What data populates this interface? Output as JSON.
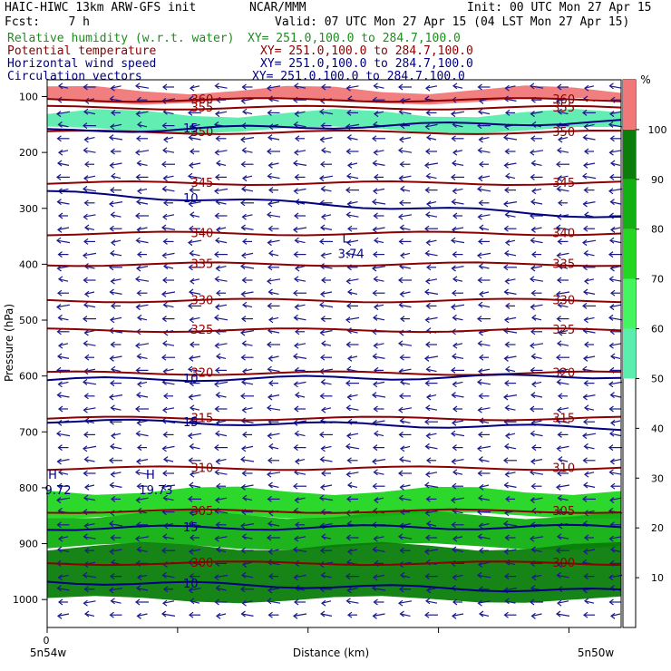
{
  "header": {
    "line1_left": "HAIC-HIWC 13km ARW-GFS init",
    "line1_mid": "NCAR/MMM",
    "line1_right": "Init: 00 UTC Mon 27 Apr 15",
    "line2_left": "Fcst:    7 h",
    "line2_right": "Valid: 07 UTC Mon 27 Apr 15 (04 LST Mon 27 Apr 15)",
    "fields": [
      {
        "name": "Relative humidity (w.r.t. water)",
        "xy": "XY= 251.0,100.0 to 284.7,100.0",
        "color": "#1e8c1e"
      },
      {
        "name": "Potential temperature",
        "xy": "XY= 251.0,100.0 to 284.7,100.0",
        "color": "#8b0000"
      },
      {
        "name": "Horizontal wind speed",
        "xy": "XY= 251.0,100.0 to 284.7,100.0",
        "color": "#000080"
      },
      {
        "name": "Circulation vectors",
        "xy": "XY= 251.0,100.0 to 284.7,100.0",
        "color": "#000080"
      }
    ]
  },
  "chart_data": {
    "type": "heatmap",
    "xlabel": "Distance (km)",
    "ylabel": "Pressure (hPa)",
    "x_start_label": "5n54w",
    "x_end_label": "5n50w",
    "x_zero_label": "0",
    "yticks": [
      100,
      200,
      300,
      400,
      500,
      600,
      700,
      800,
      900,
      1000
    ],
    "ylim": [
      1050,
      70
    ],
    "colorbar": {
      "unit": "%",
      "ticks": [
        10,
        20,
        30,
        40,
        50,
        60,
        70,
        80,
        90,
        100
      ],
      "bands": [
        {
          "from": 50,
          "to": 60,
          "color": "#5aedae"
        },
        {
          "from": 60,
          "to": 70,
          "color": "#44f560"
        },
        {
          "from": 70,
          "to": 80,
          "color": "#22d622"
        },
        {
          "from": 80,
          "to": 90,
          "color": "#12b012"
        },
        {
          "from": 90,
          "to": 100,
          "color": "#0a7d0a"
        },
        {
          "from": 100,
          "to": 110,
          "color": "#f07878"
        }
      ]
    },
    "rh_fields": [
      {
        "band": 2,
        "p_top": 805,
        "p_bot": 850
      },
      {
        "band": 3,
        "p_top": 848,
        "p_bot": 905
      },
      {
        "band": 4,
        "p_top": 905,
        "p_bot": 1000
      },
      {
        "band": 0,
        "p_top": 130,
        "p_bot": 160
      },
      {
        "band": 5,
        "p_top": 88,
        "p_bot": 108
      }
    ],
    "theta_contours": [
      {
        "label": "300",
        "p": 935
      },
      {
        "label": "305",
        "p": 842
      },
      {
        "label": "310",
        "p": 765
      },
      {
        "label": "315",
        "p": 676
      },
      {
        "label": "320",
        "p": 595
      },
      {
        "label": "325",
        "p": 518
      },
      {
        "label": "330",
        "p": 465
      },
      {
        "label": "335",
        "p": 400
      },
      {
        "label": "340",
        "p": 345
      },
      {
        "label": "345",
        "p": 255
      },
      {
        "label": "350",
        "p": 164
      },
      {
        "label": "355",
        "p": 120
      },
      {
        "label": "360",
        "p": 106
      }
    ],
    "wind_contours": [
      {
        "label": "10",
        "p_left": 968,
        "p_right": 985
      },
      {
        "label": "15",
        "p_left": 872,
        "p_right": 870
      },
      {
        "label": "15",
        "p_left": 680,
        "p_right": 693
      },
      {
        "label": "10",
        "p_left": 607,
        "p_right": 600
      },
      {
        "label": "10",
        "p_left": 272,
        "p_right": 315
      },
      {
        "label": "15",
        "p_left": 162,
        "p_right": 145
      }
    ],
    "extrema": [
      {
        "type": "L",
        "value": "3.74",
        "x_frac": 0.52,
        "p": 368
      },
      {
        "type": "H",
        "value": "19.73",
        "x_frac": 0.18,
        "p": 790
      },
      {
        "type": "H",
        "value": "9.72",
        "x_frac": 0.0,
        "p": 790
      }
    ]
  }
}
